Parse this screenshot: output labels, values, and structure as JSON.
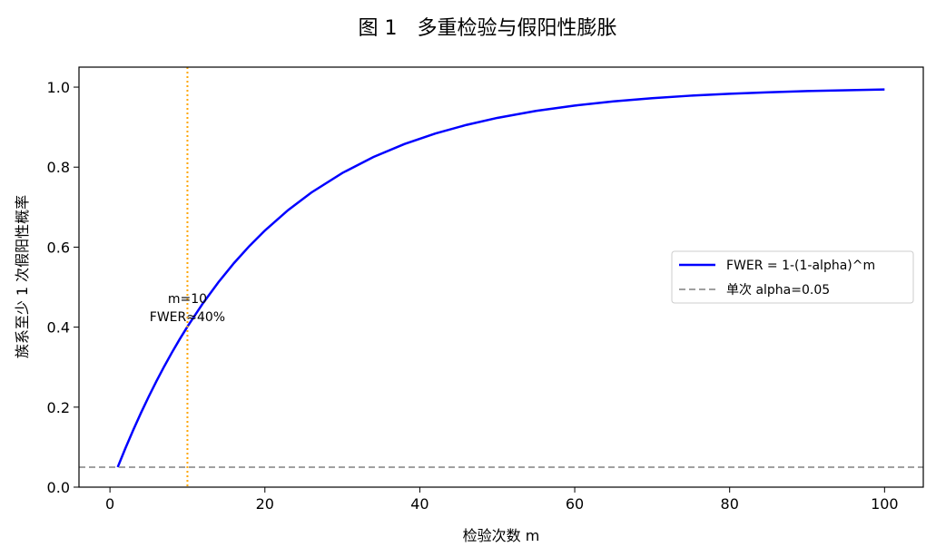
{
  "chart_data": {
    "type": "line",
    "title": "图 1　多重检验与假阳性膨胀",
    "xlabel": "检验次数 m",
    "ylabel": "族系至少 1 次假阳性概率",
    "xlim": [
      -4,
      105
    ],
    "ylim": [
      0,
      1.05
    ],
    "xticks": [
      0,
      20,
      40,
      60,
      80,
      100
    ],
    "xtick_labels": [
      "0",
      "20",
      "40",
      "60",
      "80",
      "100"
    ],
    "yticks": [
      0.0,
      0.2,
      0.4,
      0.6,
      0.8,
      1.0
    ],
    "ytick_labels": [
      "0.0",
      "0.2",
      "0.4",
      "0.6",
      "0.8",
      "1.0"
    ],
    "grid": false,
    "legend_position": "center-right",
    "series": [
      {
        "name": "FWER = 1-(1-alpha)^m",
        "color": "#0000ff",
        "style": "solid",
        "x": [
          1,
          2,
          3,
          4,
          5,
          6,
          7,
          8,
          9,
          10,
          12,
          14,
          16,
          18,
          20,
          23,
          26,
          30,
          34,
          38,
          42,
          46,
          50,
          55,
          60,
          65,
          70,
          75,
          80,
          85,
          90,
          95,
          100
        ],
        "y": [
          0.05,
          0.0975,
          0.1426,
          0.1855,
          0.2262,
          0.2649,
          0.3017,
          0.3366,
          0.3698,
          0.4013,
          0.4596,
          0.5123,
          0.5599,
          0.6028,
          0.6415,
          0.6926,
          0.7365,
          0.7854,
          0.8252,
          0.8576,
          0.884,
          0.9055,
          0.9231,
          0.9405,
          0.9539,
          0.9643,
          0.9724,
          0.9787,
          0.9835,
          0.9872,
          0.9901,
          0.9923,
          0.9941
        ]
      },
      {
        "name": "单次 alpha=0.05",
        "color": "#a0a0a0",
        "style": "dashed",
        "x": [
          -4,
          105
        ],
        "y": [
          0.05,
          0.05
        ]
      }
    ],
    "vline": {
      "x": 10,
      "color": "#ffa500",
      "style": "dotted"
    },
    "annotation": {
      "lines": [
        "m=10",
        "FWER≈40%"
      ],
      "x": 10,
      "y": 0.47
    }
  }
}
